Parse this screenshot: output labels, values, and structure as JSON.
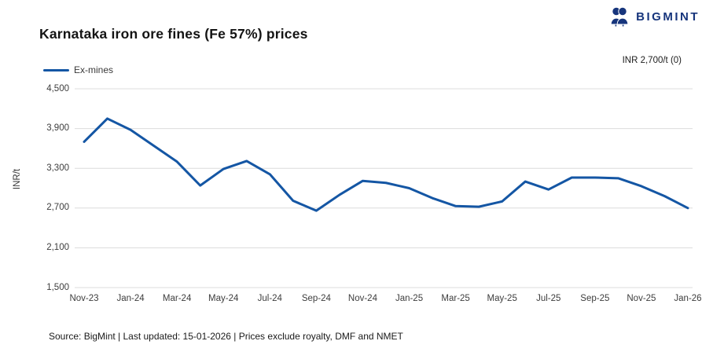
{
  "header": {
    "title": "Karnataka iron ore fines (Fe 57%) prices",
    "logo_text": "BIGMINT",
    "logo_color": "#17357c"
  },
  "legend": {
    "series_label": "Ex-mines"
  },
  "current_value_label": "INR 2,700/t (0)",
  "footer": {
    "source_line": "Source: BigMint | Last updated: 15-01-2026 | Prices exclude royalty, DMF and NMET"
  },
  "colors": {
    "line": "#1456a4",
    "gridline": "#dcdcdc",
    "brand_navy": "#17357c"
  },
  "chart_data": {
    "type": "line",
    "title": "Karnataka iron ore fines (Fe 57%) prices",
    "xlabel": "",
    "ylabel": "INR/t",
    "ylim": [
      1500,
      4500
    ],
    "yticks": [
      4500,
      3900,
      3300,
      2700,
      2100,
      1500
    ],
    "grid": "horizontal",
    "legend_position": "top-left",
    "x_tick_labels": [
      "Nov-23",
      "Jan-24",
      "Mar-24",
      "May-24",
      "Jul-24",
      "Sep-24",
      "Nov-24",
      "Jan-25",
      "Mar-25",
      "May-25",
      "Jul-25",
      "Sep-25",
      "Nov-25",
      "Jan-26"
    ],
    "series": [
      {
        "name": "Ex-mines",
        "color": "#1456a4",
        "x": [
          "Nov-23",
          "Dec-23",
          "Jan-24",
          "Feb-24",
          "Mar-24",
          "Apr-24",
          "May-24",
          "Jun-24",
          "Jul-24",
          "Aug-24",
          "Sep-24",
          "Oct-24",
          "Nov-24",
          "Dec-24",
          "Jan-25",
          "Feb-25",
          "Mar-25",
          "Apr-25",
          "May-25",
          "Jun-25",
          "Jul-25",
          "Aug-25",
          "Sep-25",
          "Oct-25",
          "Nov-25",
          "Dec-25",
          "Jan-26"
        ],
        "values": [
          3700,
          4050,
          3880,
          3640,
          3400,
          3040,
          3290,
          3410,
          3210,
          2810,
          2660,
          2900,
          3110,
          3080,
          3000,
          2850,
          2730,
          2720,
          2800,
          3100,
          2980,
          3160,
          3160,
          3150,
          3030,
          2880,
          2700
        ]
      }
    ],
    "last_value_annotation": "INR 2,700/t (0)"
  }
}
